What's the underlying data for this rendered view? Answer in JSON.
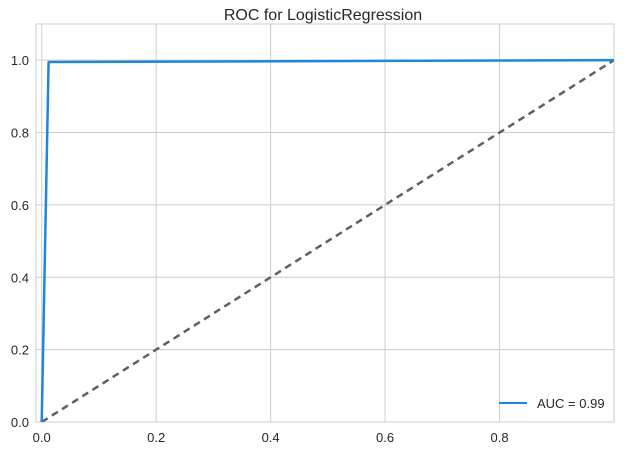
{
  "chart_data": {
    "type": "line",
    "title": "ROC for LogisticRegression",
    "xlabel": "",
    "ylabel": "",
    "xlim": [
      -0.01,
      1.0
    ],
    "ylim": [
      0.0,
      1.1
    ],
    "grid": true,
    "legend_placement": "bottom-right",
    "x_ticks": [
      0.0,
      0.2,
      0.4,
      0.6,
      0.8
    ],
    "x_tick_labels": [
      "0.0",
      "0.2",
      "0.4",
      "0.6",
      "0.8"
    ],
    "y_ticks": [
      0.0,
      0.2,
      0.4,
      0.6,
      0.8,
      1.0
    ],
    "y_tick_labels": [
      "0.0",
      "0.2",
      "0.4",
      "0.6",
      "0.8",
      "1.0"
    ],
    "series": [
      {
        "name": "AUC = 0.99",
        "color": "#1f86db",
        "style": "solid",
        "x": [
          0.0,
          0.012,
          0.012,
          1.0
        ],
        "y": [
          0.0,
          0.995,
          0.995,
          1.0
        ]
      },
      {
        "color": "#606060",
        "style": "dashed",
        "x": [
          0.0,
          1.0
        ],
        "y": [
          0.0,
          1.0
        ]
      }
    ]
  }
}
